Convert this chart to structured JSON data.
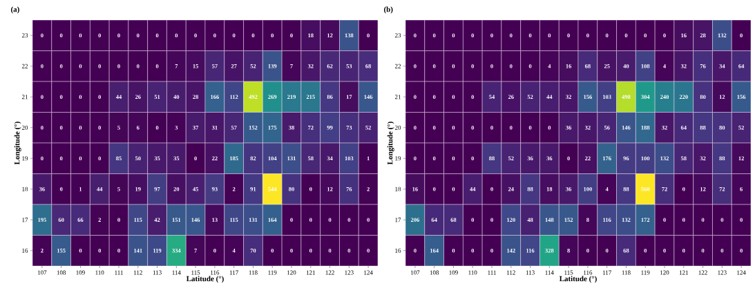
{
  "chart_data": [
    {
      "type": "heatmap",
      "title": "(a)",
      "xlabel": "Latitude (°)",
      "ylabel": "Longitude (°)",
      "data_labels": true,
      "categories": [
        "107",
        "108",
        "109",
        "110",
        "111",
        "112",
        "113",
        "114",
        "115",
        "116",
        "117",
        "118",
        "119",
        "120",
        "121",
        "122",
        "123",
        "124"
      ],
      "y_categories": [
        "23",
        "22",
        "21",
        "20",
        "19",
        "18",
        "17",
        "16"
      ],
      "cells": [
        [
          0,
          0,
          0,
          0,
          0,
          0,
          0,
          0,
          0,
          0,
          0,
          0,
          0,
          0,
          18,
          12,
          138,
          0
        ],
        [
          0,
          0,
          0,
          0,
          0,
          0,
          0,
          7,
          15,
          57,
          27,
          52,
          139,
          7,
          32,
          62,
          53,
          68
        ],
        [
          0,
          0,
          0,
          0,
          44,
          26,
          51,
          40,
          28,
          166,
          112,
          492,
          269,
          219,
          215,
          86,
          17,
          146
        ],
        [
          0,
          0,
          0,
          0,
          5,
          6,
          0,
          3,
          37,
          31,
          57,
          152,
          175,
          38,
          72,
          99,
          73,
          52
        ],
        [
          0,
          0,
          0,
          0,
          85,
          50,
          35,
          35,
          0,
          22,
          185,
          82,
          104,
          131,
          58,
          34,
          103,
          1
        ],
        [
          36,
          0,
          1,
          44,
          5,
          19,
          97,
          20,
          45,
          93,
          2,
          91,
          544,
          80,
          0,
          12,
          76,
          2
        ],
        [
          195,
          60,
          66,
          2,
          0,
          115,
          42,
          151,
          146,
          13,
          115,
          131,
          164,
          0,
          0,
          0,
          0,
          0
        ],
        [
          2,
          155,
          0,
          0,
          0,
          141,
          119,
          334,
          7,
          0,
          4,
          70,
          0,
          0,
          0,
          0,
          0,
          0
        ]
      ]
    },
    {
      "type": "heatmap",
      "title": "(b)",
      "xlabel": "Latitude (°)",
      "ylabel": "Longitude (°)",
      "data_labels": true,
      "categories": [
        "107",
        "108",
        "109",
        "110",
        "111",
        "112",
        "113",
        "114",
        "115",
        "116",
        "117",
        "118",
        "119",
        "120",
        "121",
        "122",
        "123",
        "124"
      ],
      "y_categories": [
        "23",
        "22",
        "21",
        "20",
        "19",
        "18",
        "17",
        "16"
      ],
      "cells": [
        [
          0,
          0,
          0,
          0,
          0,
          0,
          0,
          0,
          0,
          0,
          0,
          0,
          0,
          0,
          16,
          28,
          132,
          0
        ],
        [
          0,
          0,
          0,
          0,
          0,
          0,
          0,
          4,
          16,
          68,
          25,
          40,
          108,
          4,
          32,
          76,
          34,
          64
        ],
        [
          0,
          0,
          0,
          0,
          54,
          26,
          52,
          44,
          32,
          156,
          103,
          498,
          304,
          240,
          220,
          80,
          12,
          156
        ],
        [
          0,
          0,
          0,
          0,
          0,
          0,
          0,
          0,
          36,
          32,
          56,
          146,
          188,
          32,
          64,
          88,
          80,
          52
        ],
        [
          0,
          0,
          0,
          0,
          88,
          52,
          36,
          36,
          0,
          22,
          176,
          96,
          100,
          132,
          58,
          32,
          88,
          12
        ],
        [
          16,
          0,
          0,
          44,
          0,
          24,
          88,
          18,
          36,
          100,
          4,
          88,
          560,
          72,
          0,
          12,
          72,
          6
        ],
        [
          206,
          64,
          68,
          0,
          0,
          120,
          48,
          148,
          152,
          8,
          116,
          132,
          172,
          0,
          0,
          0,
          0,
          0
        ],
        [
          0,
          164,
          0,
          0,
          0,
          142,
          116,
          328,
          8,
          0,
          0,
          68,
          0,
          0,
          0,
          0,
          0,
          0
        ]
      ]
    }
  ]
}
